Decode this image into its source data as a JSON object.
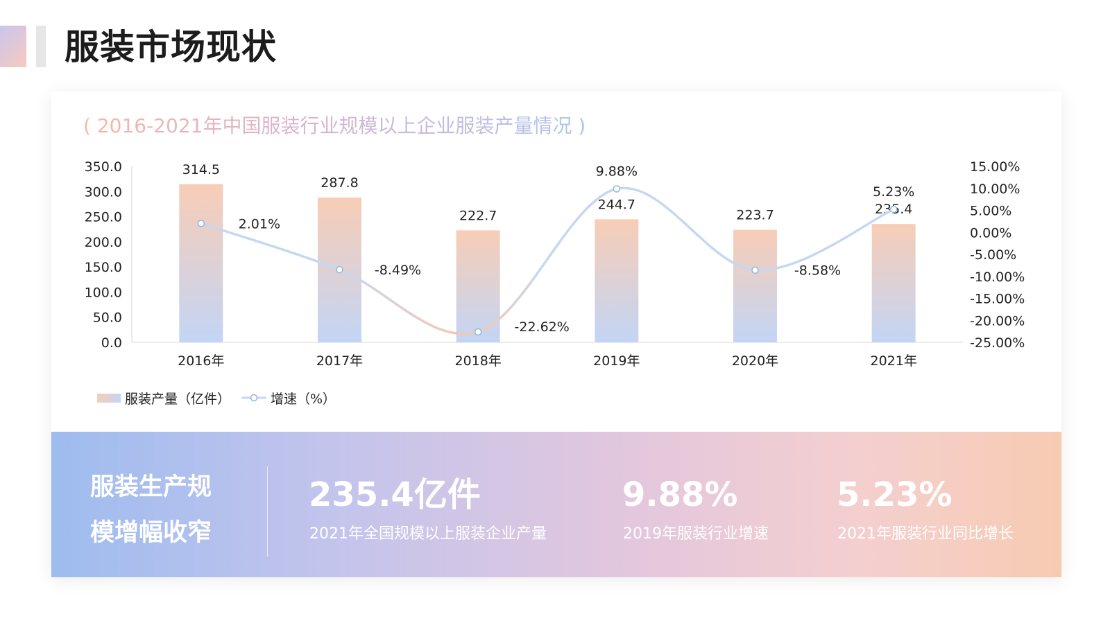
{
  "page": {
    "title": "服装市场现状"
  },
  "chart_data": {
    "type": "bar+line",
    "title": "( 2016-2021年中国服装行业规模以上企业服装产量情况 )",
    "categories": [
      "2016年",
      "2017年",
      "2018年",
      "2019年",
      "2020年",
      "2021年"
    ],
    "series": [
      {
        "name": "服装产量（亿件）",
        "type": "bar",
        "axis": "left",
        "values": [
          314.5,
          287.8,
          222.7,
          244.7,
          223.7,
          235.4
        ],
        "labels": [
          "314.5",
          "287.8",
          "222.7",
          "244.7",
          "223.7",
          "235.4"
        ]
      },
      {
        "name": "增速（%）",
        "type": "line",
        "axis": "right",
        "values": [
          2.01,
          -8.49,
          -22.62,
          9.88,
          -8.58,
          5.23
        ],
        "labels": [
          "2.01%",
          "-8.49%",
          "-22.62%",
          "9.88%",
          "-8.58%",
          "5.23%"
        ]
      }
    ],
    "y_left": {
      "min": 0,
      "max": 350,
      "ticks": [
        "0.0",
        "50.0",
        "100.0",
        "150.0",
        "200.0",
        "250.0",
        "300.0",
        "350.0"
      ]
    },
    "y_right": {
      "min": -25,
      "max": 15,
      "ticks": [
        "-25.00%",
        "-20.00%",
        "-15.00%",
        "-10.00%",
        "-5.00%",
        "0.00%",
        "5.00%",
        "10.00%",
        "15.00%"
      ]
    },
    "legend_position": "bottom-left",
    "grid": false,
    "colors": {
      "bar_top": "#f8cdb6",
      "bar_bottom": "#c3d5f5",
      "line": "#c5d8f1",
      "line_low": "#f2c9b8",
      "marker_stroke": "#8fb8de"
    }
  },
  "summary": {
    "heading": "服装生产规模增幅收窄",
    "stats": [
      {
        "value": "235.4亿件",
        "label": "2021年全国规模以上服装企业产量"
      },
      {
        "value": "9.88%",
        "label": "2019年服装行业增速"
      },
      {
        "value": "5.23%",
        "label": "2021年服装行业同比增长"
      }
    ]
  }
}
